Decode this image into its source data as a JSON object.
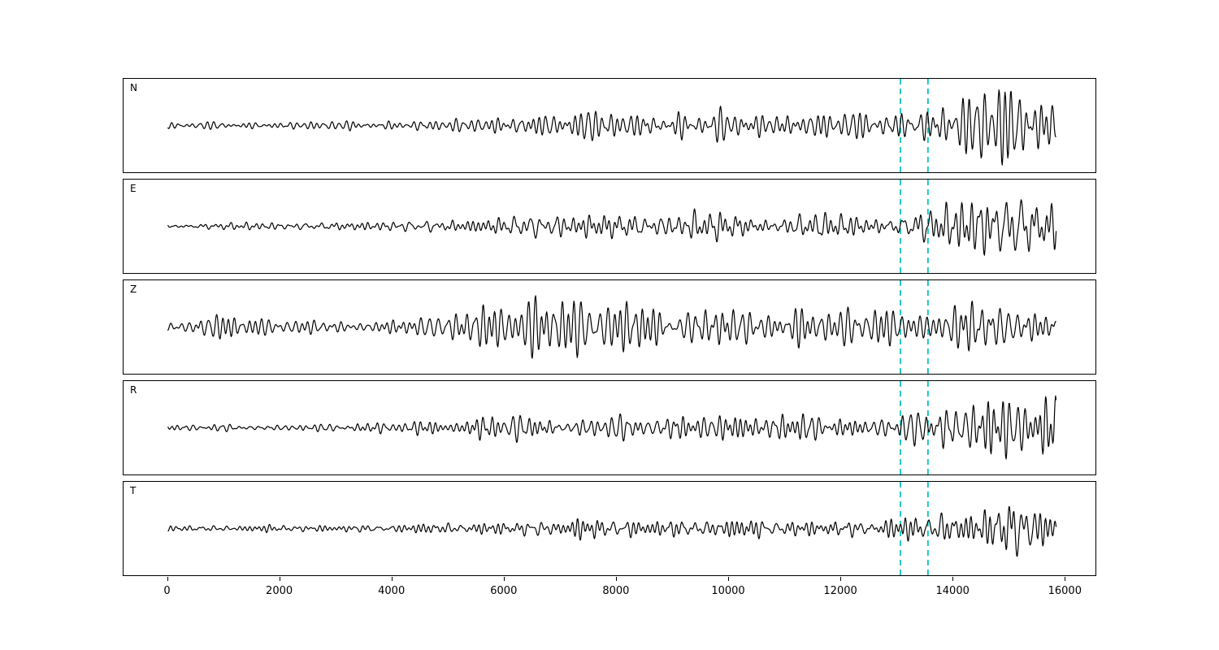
{
  "figure": {
    "background": "#ffffff",
    "axes_edge_color": "#000000",
    "trace_color": "#000000",
    "vline_color": "#00bfbf"
  },
  "chart_data": {
    "type": "line",
    "title": "",
    "xlabel": "",
    "ylabel": "",
    "grid": false,
    "legend": "none",
    "xlim": [
      -790,
      16560
    ],
    "x_ticks": [
      0,
      2000,
      4000,
      6000,
      8000,
      10000,
      12000,
      14000,
      16000
    ],
    "vlines_x": [
      13070,
      13560
    ],
    "vline_style": "dashed",
    "channels": [
      "N",
      "E",
      "Z",
      "R",
      "T"
    ],
    "panels": [
      {
        "label": "N",
        "seed": 11,
        "x_start": 0,
        "x_end": 15830,
        "envelope": [
          [
            0,
            3
          ],
          [
            2000,
            3.5
          ],
          [
            4000,
            4.5
          ],
          [
            5500,
            6
          ],
          [
            6200,
            11
          ],
          [
            7000,
            12
          ],
          [
            7600,
            14
          ],
          [
            8200,
            13
          ],
          [
            9000,
            12
          ],
          [
            9800,
            13
          ],
          [
            10600,
            12
          ],
          [
            11500,
            13
          ],
          [
            12300,
            12
          ],
          [
            13000,
            13
          ],
          [
            13400,
            18
          ],
          [
            13800,
            22
          ],
          [
            14300,
            28
          ],
          [
            14700,
            38
          ],
          [
            15000,
            46
          ],
          [
            15200,
            40
          ],
          [
            15500,
            30
          ],
          [
            15830,
            24
          ]
        ]
      },
      {
        "label": "E",
        "seed": 27,
        "x_start": 0,
        "x_end": 15830,
        "envelope": [
          [
            0,
            3
          ],
          [
            2500,
            4
          ],
          [
            4500,
            5
          ],
          [
            5800,
            9
          ],
          [
            6500,
            11
          ],
          [
            7200,
            12
          ],
          [
            8000,
            13
          ],
          [
            8800,
            12
          ],
          [
            9600,
            14
          ],
          [
            10400,
            12
          ],
          [
            11200,
            12
          ],
          [
            12000,
            11
          ],
          [
            12800,
            12
          ],
          [
            13400,
            16
          ],
          [
            13900,
            20
          ],
          [
            14400,
            30
          ],
          [
            14800,
            32
          ],
          [
            15100,
            42
          ],
          [
            15400,
            34
          ],
          [
            15830,
            26
          ]
        ]
      },
      {
        "label": "Z",
        "seed": 33,
        "x_start": 0,
        "x_end": 15830,
        "envelope": [
          [
            0,
            4
          ],
          [
            400,
            6
          ],
          [
            550,
            16
          ],
          [
            800,
            12
          ],
          [
            1100,
            13
          ],
          [
            1400,
            12
          ],
          [
            1800,
            8
          ],
          [
            2500,
            6
          ],
          [
            3500,
            6
          ],
          [
            4200,
            10
          ],
          [
            4700,
            14
          ],
          [
            5200,
            16
          ],
          [
            5700,
            22
          ],
          [
            6000,
            38
          ],
          [
            6200,
            40
          ],
          [
            6500,
            30
          ],
          [
            6800,
            28
          ],
          [
            7200,
            26
          ],
          [
            7600,
            24
          ],
          [
            8000,
            26
          ],
          [
            8400,
            30
          ],
          [
            8800,
            22
          ],
          [
            9500,
            20
          ],
          [
            10500,
            20
          ],
          [
            11500,
            18
          ],
          [
            12500,
            17
          ],
          [
            13500,
            18
          ],
          [
            14200,
            26
          ],
          [
            14500,
            30
          ],
          [
            14800,
            24
          ],
          [
            15300,
            20
          ],
          [
            15830,
            16
          ]
        ]
      },
      {
        "label": "R",
        "seed": 41,
        "x_start": 0,
        "x_end": 15830,
        "envelope": [
          [
            0,
            3
          ],
          [
            2500,
            4
          ],
          [
            4500,
            6
          ],
          [
            5500,
            10
          ],
          [
            6000,
            13
          ],
          [
            6600,
            12
          ],
          [
            7200,
            11
          ],
          [
            7800,
            14
          ],
          [
            8400,
            13
          ],
          [
            9200,
            12
          ],
          [
            10000,
            13
          ],
          [
            11000,
            12
          ],
          [
            12000,
            12
          ],
          [
            12800,
            13
          ],
          [
            13300,
            17
          ],
          [
            13700,
            24
          ],
          [
            14100,
            34
          ],
          [
            14400,
            40
          ],
          [
            14800,
            32
          ],
          [
            15200,
            28
          ],
          [
            15600,
            30
          ],
          [
            15830,
            34
          ]
        ]
      },
      {
        "label": "T",
        "seed": 58,
        "x_start": 0,
        "x_end": 15830,
        "envelope": [
          [
            0,
            3
          ],
          [
            3000,
            3.5
          ],
          [
            5000,
            5
          ],
          [
            6000,
            7
          ],
          [
            7000,
            9
          ],
          [
            7600,
            10
          ],
          [
            8200,
            9
          ],
          [
            9000,
            9
          ],
          [
            10000,
            9
          ],
          [
            11000,
            8.5
          ],
          [
            12000,
            8
          ],
          [
            12800,
            9
          ],
          [
            13400,
            13
          ],
          [
            13900,
            16
          ],
          [
            14400,
            18
          ],
          [
            14800,
            24
          ],
          [
            15050,
            38
          ],
          [
            15250,
            32
          ],
          [
            15500,
            22
          ],
          [
            15830,
            12
          ]
        ]
      }
    ]
  }
}
